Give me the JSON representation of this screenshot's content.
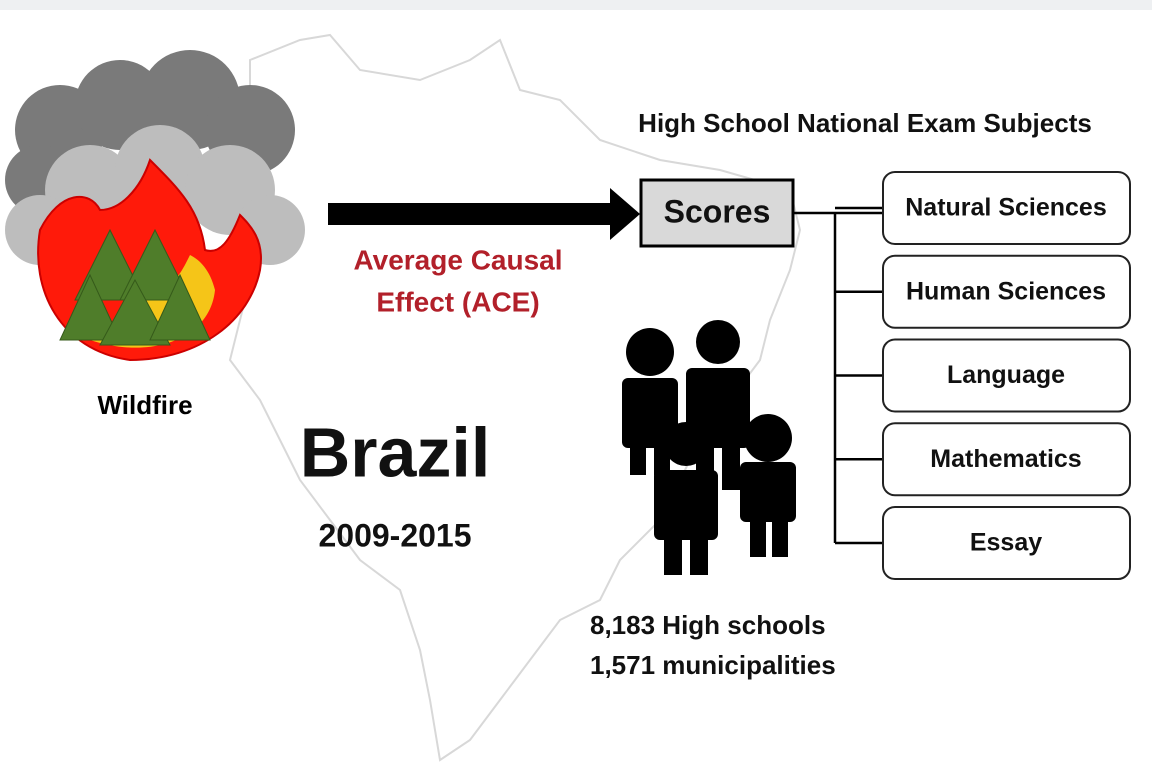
{
  "wildfire": {
    "label": "Wildfire"
  },
  "effect": {
    "lines": [
      "Average Causal",
      "Effect (ACE)"
    ]
  },
  "country": {
    "name": "Brazil",
    "years": "2009-2015"
  },
  "exam": {
    "title": "High School National Exam Subjects",
    "root": "Scores",
    "subjects": [
      "Natural Sciences",
      "Human Sciences",
      "Language",
      "Mathematics",
      "Essay"
    ]
  },
  "sample": {
    "lines": [
      "8,183 High schools",
      "1,571 municipalities"
    ]
  }
}
